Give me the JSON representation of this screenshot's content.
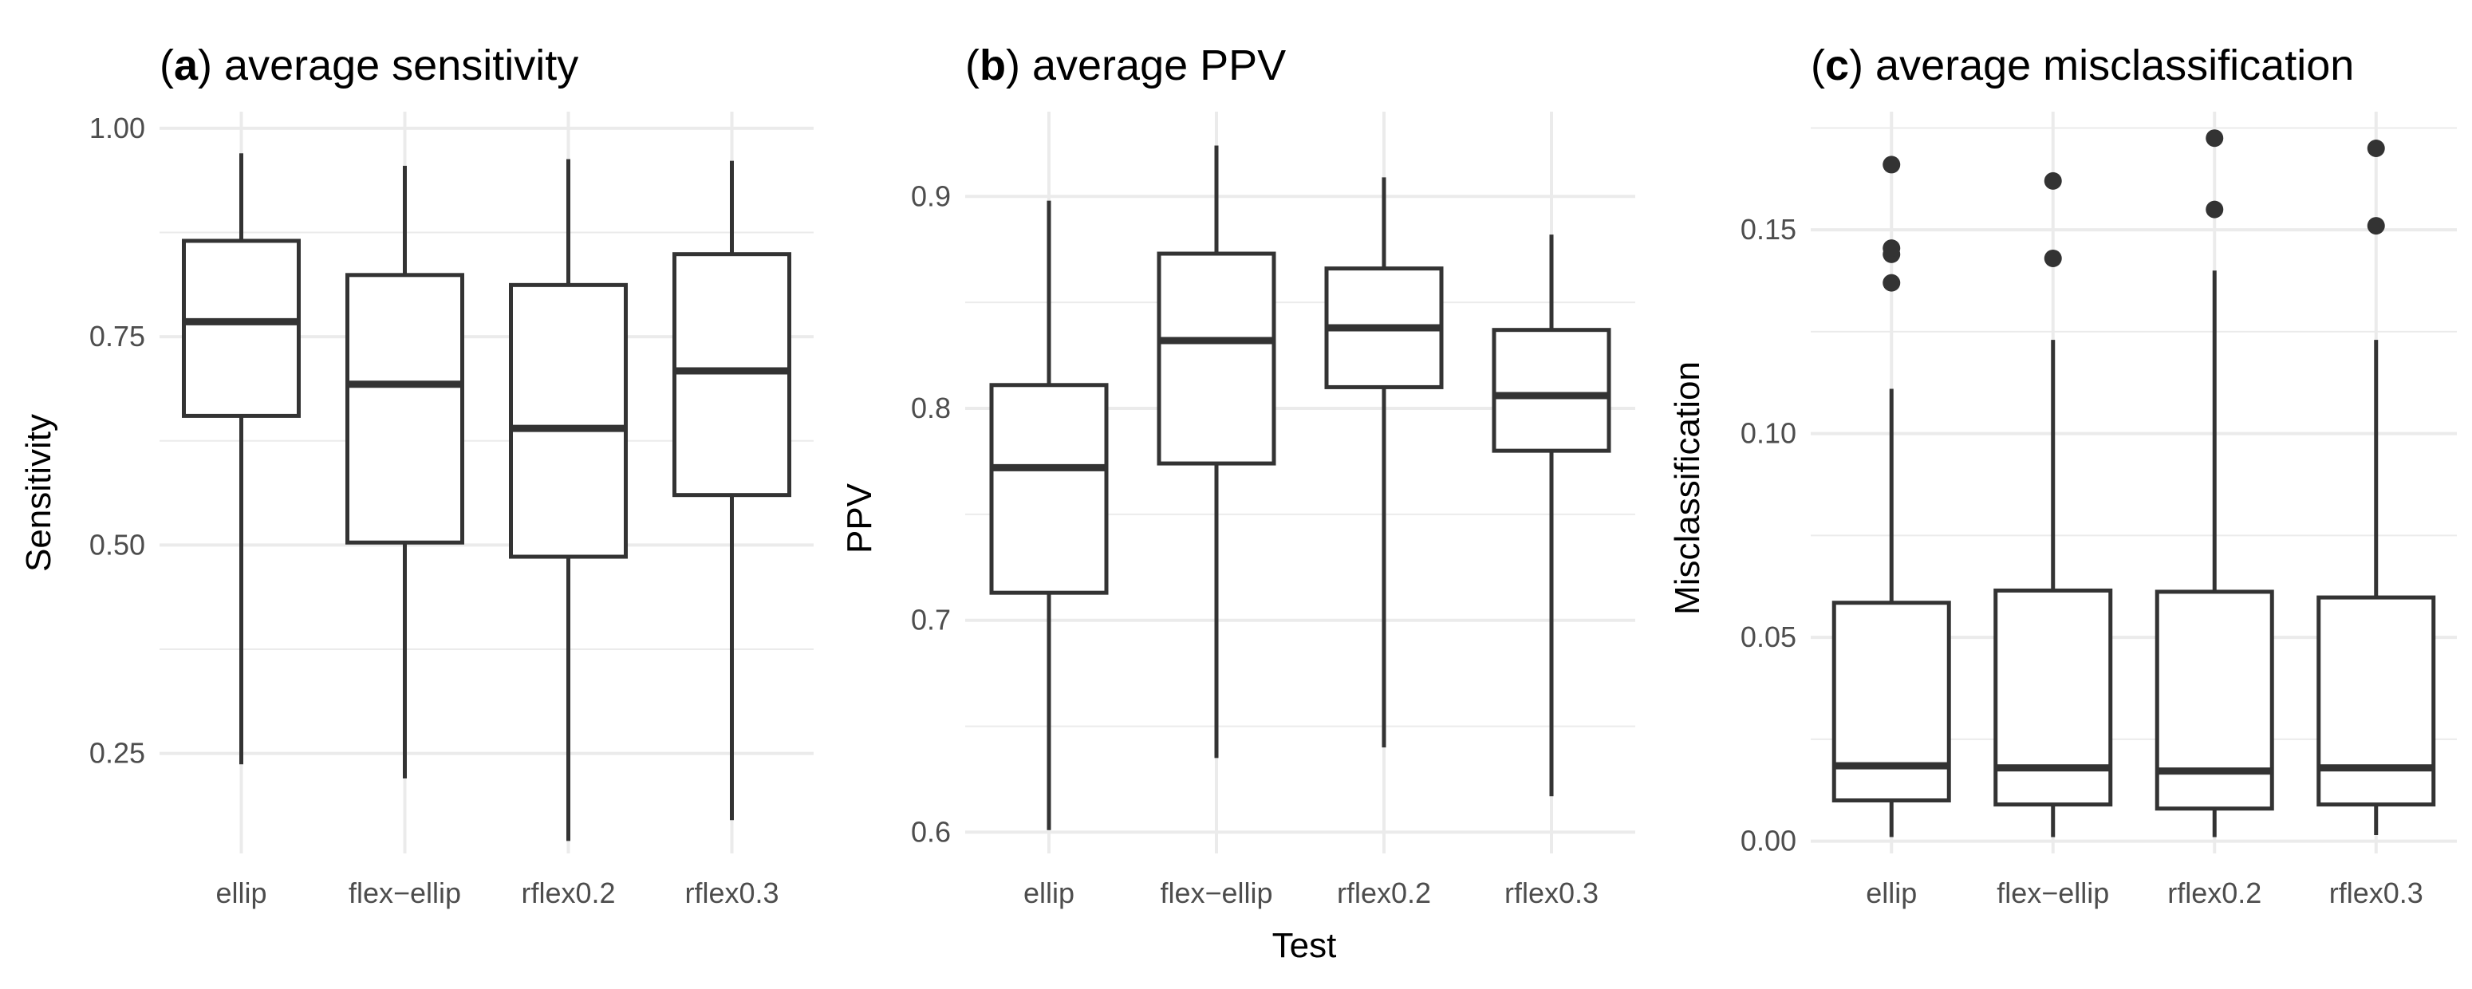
{
  "figure": {
    "x_axis_title": "Test"
  },
  "chart_data": [
    {
      "type": "boxplot",
      "panel_tag": "a",
      "title": "average sensitivity",
      "xlabel": "",
      "ylabel": "Sensitivity",
      "categories": [
        "ellip",
        "flex−ellip",
        "rflex0.2",
        "rflex0.3"
      ],
      "yticks": [
        0.25,
        0.5,
        0.75,
        1.0
      ],
      "ytick_labels": [
        "0.25",
        "0.50",
        "0.75",
        "1.00"
      ],
      "ylim": [
        0.13,
        1.02
      ],
      "boxes": [
        {
          "min": 0.237,
          "q1": 0.655,
          "median": 0.768,
          "q3": 0.865,
          "max": 0.97,
          "outliers": []
        },
        {
          "min": 0.22,
          "q1": 0.503,
          "median": 0.693,
          "q3": 0.824,
          "max": 0.955,
          "outliers": []
        },
        {
          "min": 0.145,
          "q1": 0.486,
          "median": 0.64,
          "q3": 0.812,
          "max": 0.963,
          "outliers": []
        },
        {
          "min": 0.17,
          "q1": 0.56,
          "median": 0.709,
          "q3": 0.849,
          "max": 0.961,
          "outliers": []
        }
      ]
    },
    {
      "type": "boxplot",
      "panel_tag": "b",
      "title": "average PPV",
      "xlabel": "Test",
      "ylabel": "PPV",
      "categories": [
        "ellip",
        "flex−ellip",
        "rflex0.2",
        "rflex0.3"
      ],
      "yticks": [
        0.6,
        0.7,
        0.8,
        0.9
      ],
      "ytick_labels": [
        "0.6",
        "0.7",
        "0.8",
        "0.9"
      ],
      "ylim": [
        0.59,
        0.94
      ],
      "boxes": [
        {
          "min": 0.601,
          "q1": 0.713,
          "median": 0.772,
          "q3": 0.811,
          "max": 0.898,
          "outliers": []
        },
        {
          "min": 0.635,
          "q1": 0.774,
          "median": 0.832,
          "q3": 0.873,
          "max": 0.924,
          "outliers": []
        },
        {
          "min": 0.64,
          "q1": 0.81,
          "median": 0.838,
          "q3": 0.866,
          "max": 0.909,
          "outliers": []
        },
        {
          "min": 0.617,
          "q1": 0.78,
          "median": 0.806,
          "q3": 0.837,
          "max": 0.882,
          "outliers": []
        }
      ]
    },
    {
      "type": "boxplot",
      "panel_tag": "c",
      "title": "average misclassification",
      "xlabel": "",
      "ylabel": "Misclassification",
      "categories": [
        "ellip",
        "flex−ellip",
        "rflex0.2",
        "rflex0.3"
      ],
      "yticks": [
        0.0,
        0.05,
        0.1,
        0.15
      ],
      "ytick_labels": [
        "0.00",
        "0.05",
        "0.10",
        "0.15"
      ],
      "ylim": [
        -0.003,
        0.179
      ],
      "boxes": [
        {
          "min": 0.001,
          "q1": 0.01,
          "median": 0.0185,
          "q3": 0.0585,
          "max": 0.111,
          "outliers": [
            0.137,
            0.144,
            0.1455,
            0.166
          ]
        },
        {
          "min": 0.001,
          "q1": 0.009,
          "median": 0.018,
          "q3": 0.0615,
          "max": 0.123,
          "outliers": [
            0.143,
            0.162
          ]
        },
        {
          "min": 0.001,
          "q1": 0.008,
          "median": 0.0172,
          "q3": 0.0612,
          "max": 0.14,
          "outliers": [
            0.155,
            0.1725
          ]
        },
        {
          "min": 0.0015,
          "q1": 0.009,
          "median": 0.018,
          "q3": 0.0598,
          "max": 0.123,
          "outliers": [
            0.151,
            0.17
          ]
        }
      ]
    }
  ]
}
